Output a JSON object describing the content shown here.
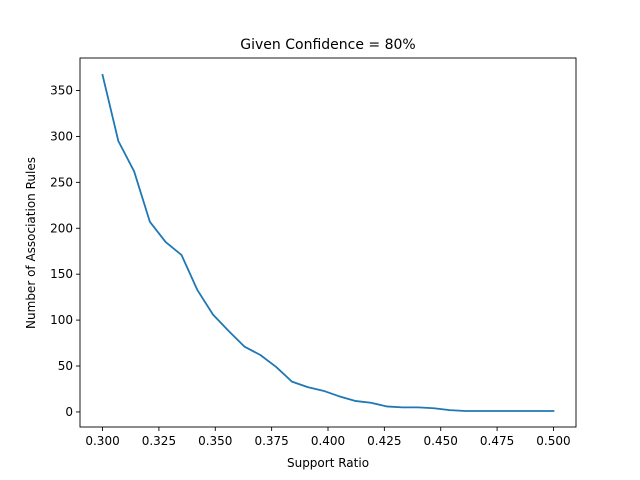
{
  "chart_data": {
    "type": "line",
    "title": "Given Confidence = 80%",
    "xlabel": "Support Ratio",
    "ylabel": "Number of Association Rules",
    "xlim": [
      0.29,
      0.51
    ],
    "ylim": [
      -16.4,
      385.4
    ],
    "xticks": [
      0.3,
      0.325,
      0.35,
      0.375,
      0.4,
      0.425,
      0.45,
      0.475,
      0.5
    ],
    "xtick_labels": [
      "0.300",
      "0.325",
      "0.350",
      "0.375",
      "0.400",
      "0.425",
      "0.450",
      "0.475",
      "0.500"
    ],
    "yticks": [
      0,
      50,
      100,
      150,
      200,
      250,
      300,
      350
    ],
    "ytick_labels": [
      "0",
      "50",
      "100",
      "150",
      "200",
      "250",
      "300",
      "350"
    ],
    "grid": false,
    "legend": "none",
    "line_color": "#1f77b4",
    "series": [
      {
        "x": [
          0.3,
          0.307,
          0.314,
          0.321,
          0.328,
          0.335,
          0.342,
          0.349,
          0.356,
          0.363,
          0.37,
          0.377,
          0.384,
          0.391,
          0.398,
          0.405,
          0.412,
          0.419,
          0.426,
          0.433,
          0.44,
          0.447,
          0.454,
          0.461,
          0.468,
          0.475,
          0.482,
          0.489,
          0.5
        ],
        "values": [
          367,
          295,
          262,
          207,
          185,
          171,
          133,
          106,
          88,
          71,
          62,
          49,
          33,
          27,
          23,
          17,
          12,
          10,
          6,
          5,
          5,
          4,
          2,
          1,
          1,
          1,
          1,
          1,
          1
        ]
      }
    ]
  }
}
